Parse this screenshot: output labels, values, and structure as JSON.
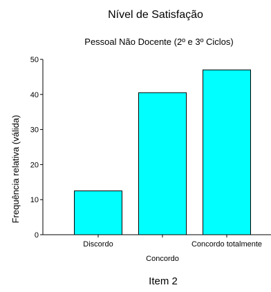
{
  "chart_data": {
    "type": "bar",
    "title": "Nível de Satisfação",
    "subtitle": "Pessoal Não Docente (2º e 3º Ciclos)",
    "xlabel": "",
    "ylabel": "Frequência relativa (válida)",
    "categories": [
      "Discordo",
      "Concordo",
      "Concordo totalmente"
    ],
    "values": [
      12.5,
      40.5,
      47.0
    ],
    "ylim": [
      0,
      50
    ],
    "yticks": [
      "0",
      "10",
      "20",
      "30",
      "40",
      "50"
    ],
    "grid": false,
    "bar_color": "#00ffff",
    "footer": "Item 2"
  }
}
